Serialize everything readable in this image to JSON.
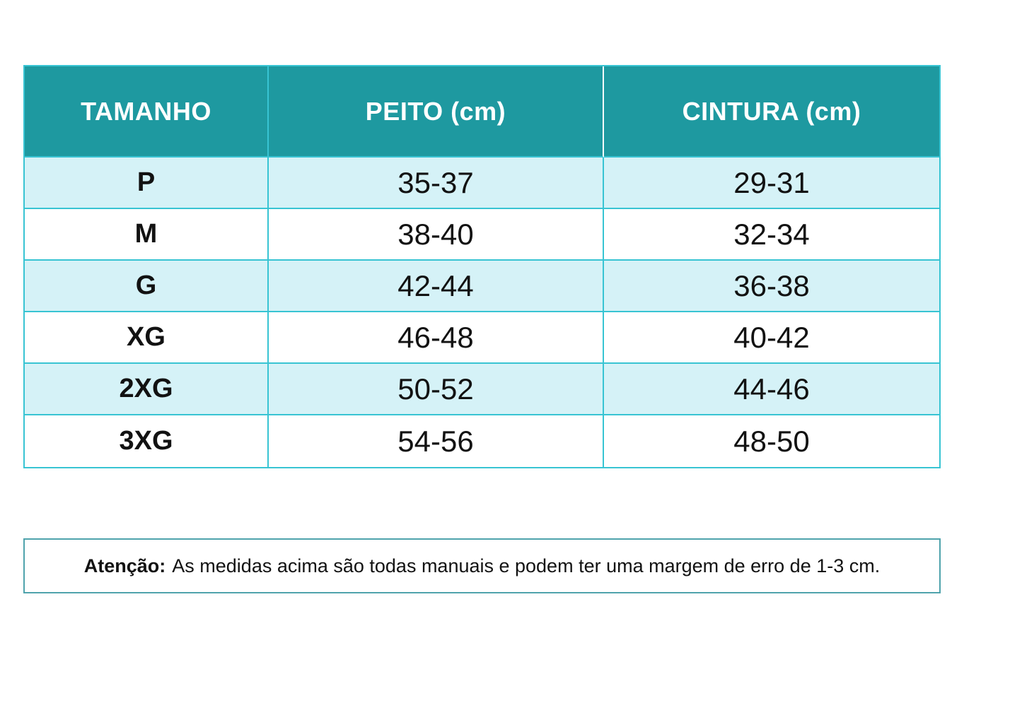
{
  "table": {
    "headers": [
      "TAMANHO",
      "PEITO (cm)",
      "CINTURA (cm)"
    ],
    "rows": [
      [
        "P",
        "35-37",
        "29-31"
      ],
      [
        "M",
        "38-40",
        "32-34"
      ],
      [
        "G",
        "42-44",
        "36-38"
      ],
      [
        "XG",
        "46-48",
        "40-42"
      ],
      [
        "2XG",
        "50-52",
        "44-46"
      ],
      [
        "3XG",
        "54-56",
        "48-50"
      ]
    ]
  },
  "note": {
    "label": "Atenção:",
    "text": "As medidas acima são todas manuais e podem ter uma margem de erro de 1-3 cm."
  },
  "colors": {
    "header_bg": "#1E99A0",
    "header_text": "#FFFFFF",
    "row_alt_bg": "#D5F2F7",
    "row_bg": "#FFFFFF",
    "grid_border": "#38C4D3",
    "header_divider": "#FFFFFF",
    "note_border": "#4FA3AC",
    "body_text": "#121212"
  }
}
